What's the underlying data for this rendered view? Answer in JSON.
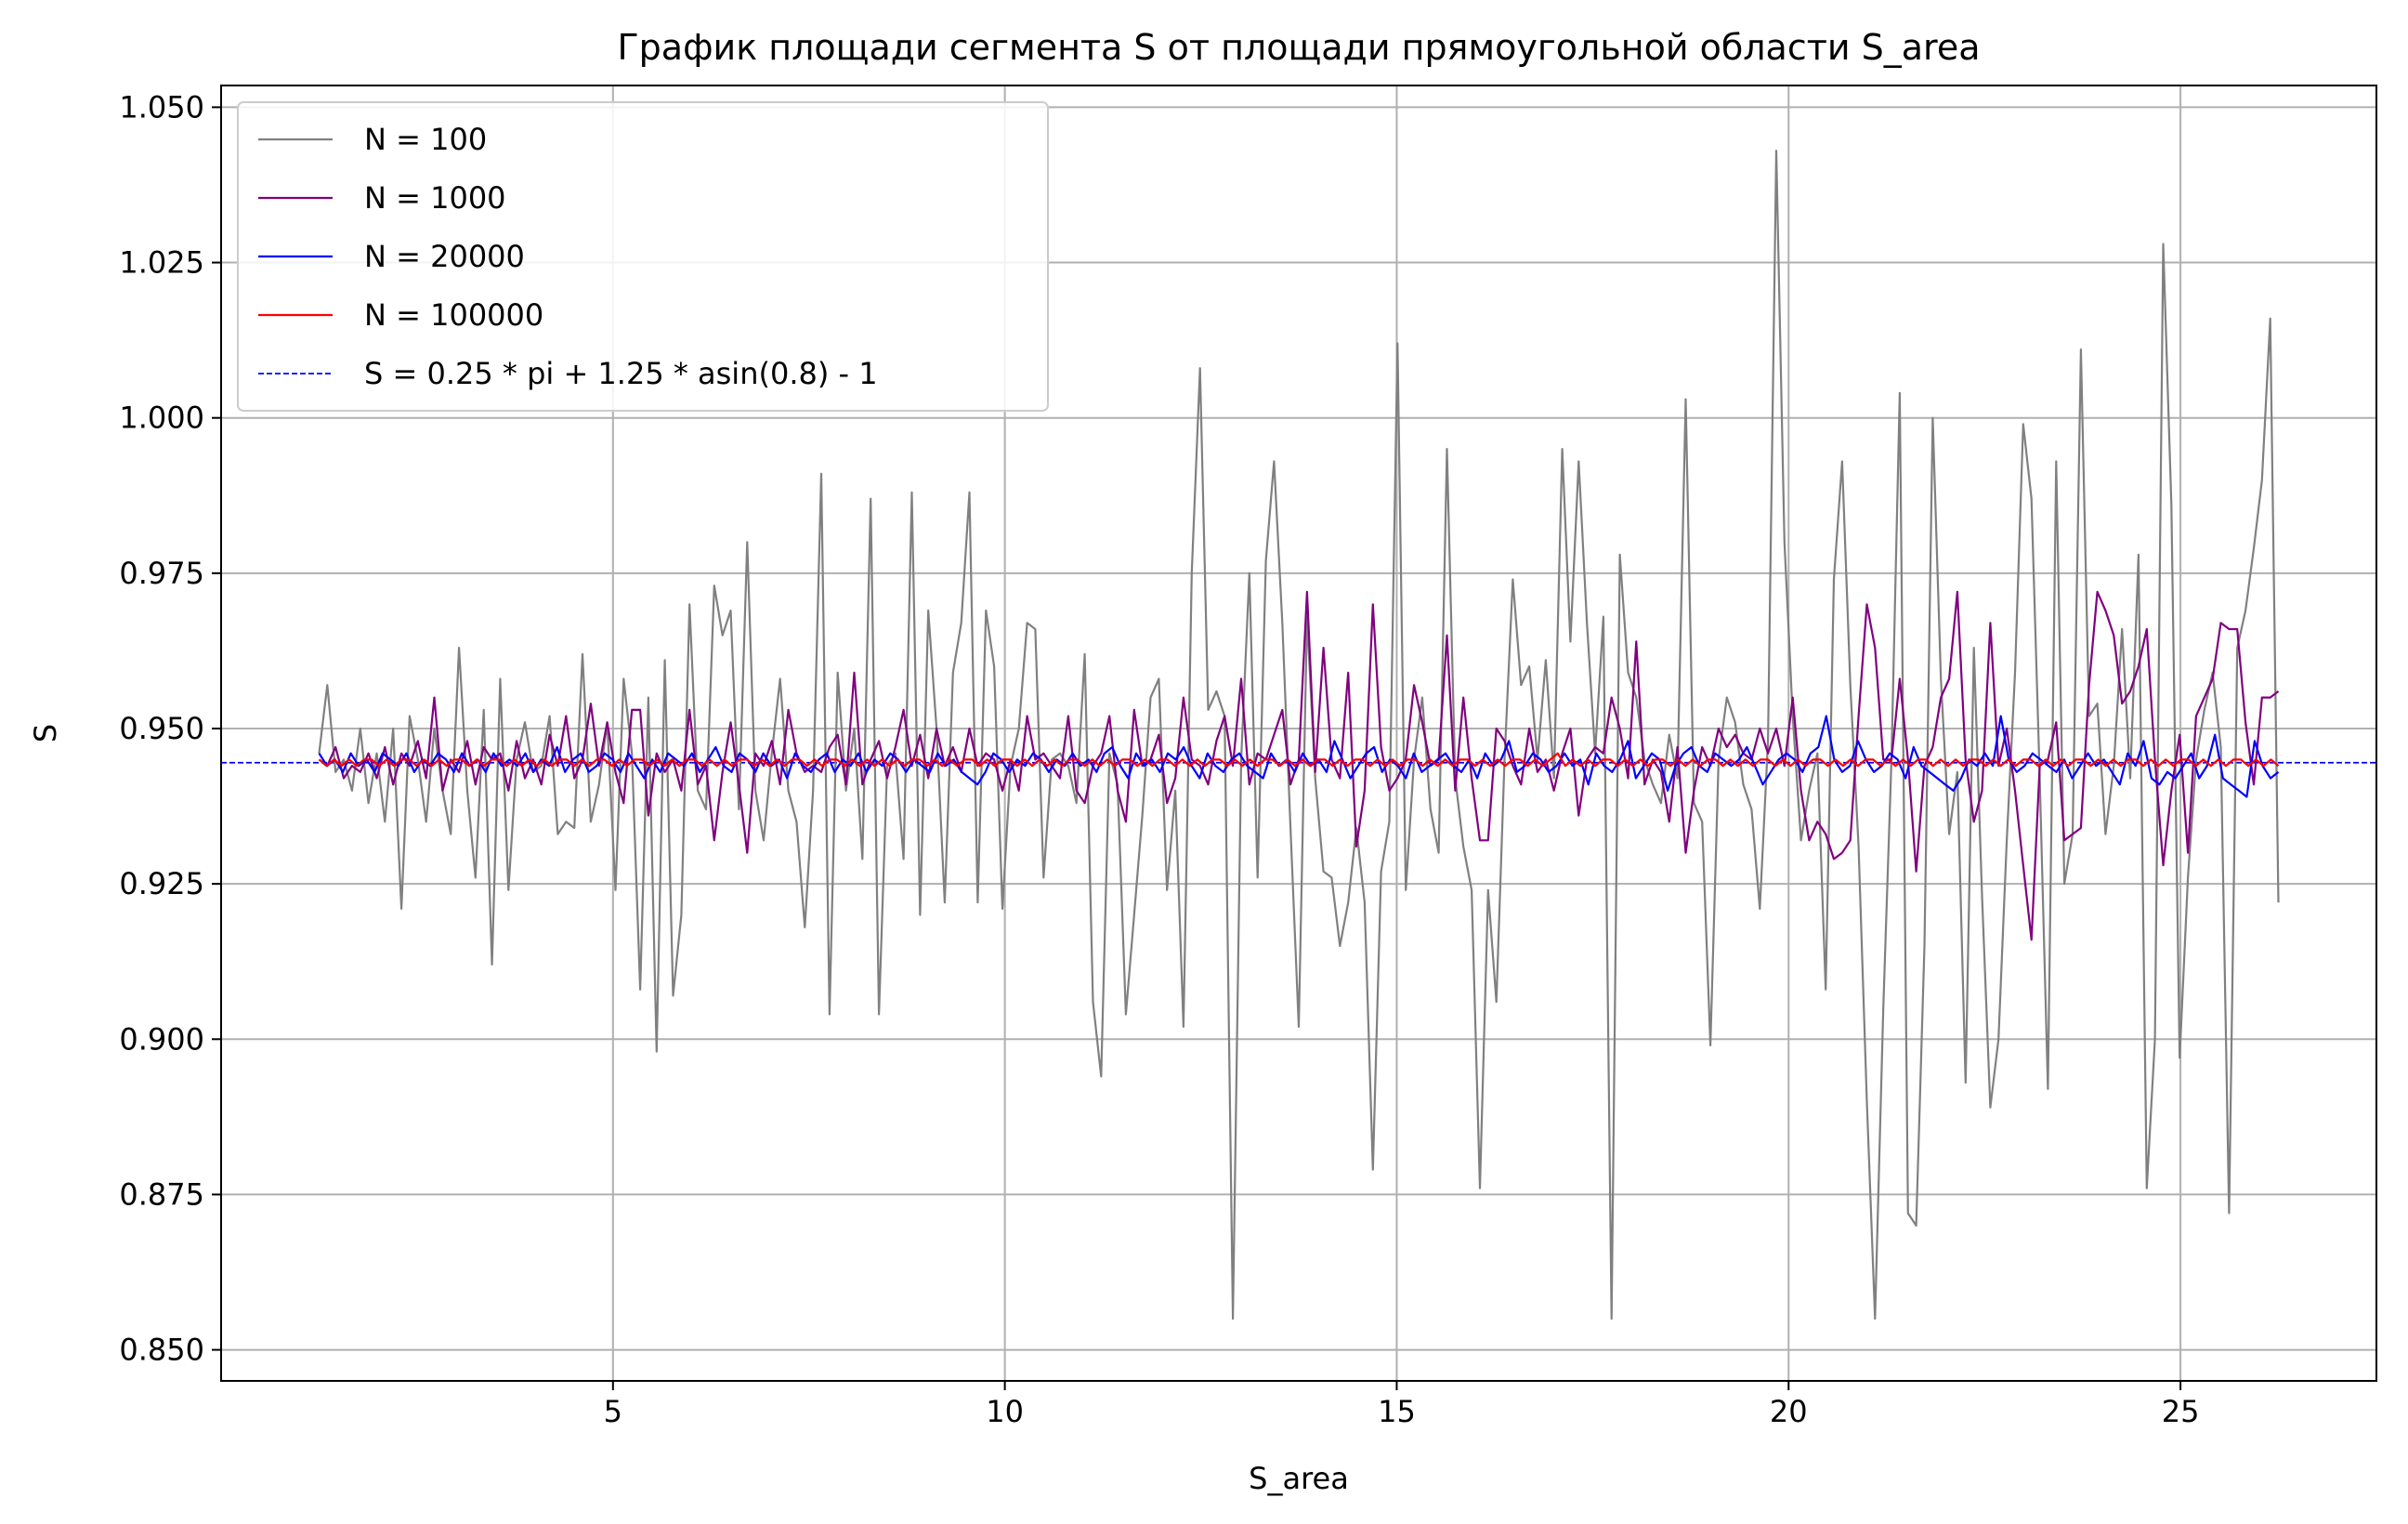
{
  "chart_data": {
    "type": "line",
    "title": "График площади сегмента S от площади прямоугольной области S_area",
    "xlabel": "S_area",
    "ylabel": "S",
    "xlim": [
      0,
      27.5
    ],
    "ylim": [
      0.845,
      1.0535
    ],
    "x_ticks": [
      5,
      10,
      15,
      20,
      25
    ],
    "x_tick_labels": [
      "5",
      "10",
      "15",
      "20",
      "25"
    ],
    "y_ticks": [
      0.85,
      0.875,
      0.9,
      0.925,
      0.95,
      0.975,
      1.0,
      1.025,
      1.05
    ],
    "y_tick_labels": [
      "0.850",
      "0.875",
      "0.900",
      "0.925",
      "0.950",
      "0.975",
      "1.000",
      "1.025",
      "1.050"
    ],
    "grid": true,
    "legend_position": "top-left",
    "x_range": [
      1.25,
      26.25
    ],
    "reference_line": {
      "name": "S = 0.25 * pi + 1.25 * asin(0.8) - 1",
      "y": 0.9445,
      "color": "#0000ff",
      "style": "dashed"
    },
    "series": [
      {
        "name": "N = 100",
        "color": "#808080",
        "values": [
          0.946,
          0.957,
          0.943,
          0.945,
          0.94,
          0.95,
          0.938,
          0.946,
          0.935,
          0.95,
          0.921,
          0.952,
          0.945,
          0.935,
          0.95,
          0.94,
          0.933,
          0.963,
          0.94,
          0.926,
          0.953,
          0.912,
          0.958,
          0.924,
          0.945,
          0.951,
          0.943,
          0.944,
          0.952,
          0.933,
          0.935,
          0.934,
          0.962,
          0.935,
          0.941,
          0.951,
          0.924,
          0.958,
          0.946,
          0.908,
          0.955,
          0.898,
          0.961,
          0.907,
          0.92,
          0.97,
          0.94,
          0.937,
          0.973,
          0.965,
          0.969,
          0.937,
          0.98,
          0.94,
          0.932,
          0.946,
          0.958,
          0.94,
          0.935,
          0.918,
          0.94,
          0.991,
          0.904,
          0.959,
          0.94,
          0.95,
          0.929,
          0.987,
          0.904,
          0.944,
          0.946,
          0.929,
          0.988,
          0.92,
          0.969,
          0.95,
          0.922,
          0.959,
          0.967,
          0.988,
          0.922,
          0.969,
          0.96,
          0.921,
          0.944,
          0.95,
          0.967,
          0.966,
          0.926,
          0.945,
          0.946,
          0.944,
          0.938,
          0.962,
          0.906,
          0.894,
          0.946,
          0.941,
          0.904,
          0.92,
          0.936,
          0.955,
          0.958,
          0.924,
          0.94,
          0.902,
          0.975,
          1.008,
          0.953,
          0.956,
          0.952,
          0.855,
          0.945,
          0.975,
          0.926,
          0.977,
          0.993,
          0.967,
          0.934,
          0.902,
          0.968,
          0.942,
          0.927,
          0.926,
          0.915,
          0.922,
          0.934,
          0.922,
          0.879,
          0.927,
          0.935,
          1.012,
          0.924,
          0.945,
          0.955,
          0.937,
          0.93,
          0.995,
          0.942,
          0.931,
          0.924,
          0.876,
          0.924,
          0.906,
          0.945,
          0.974,
          0.957,
          0.96,
          0.945,
          0.961,
          0.942,
          0.995,
          0.964,
          0.993,
          0.967,
          0.946,
          0.968,
          0.855,
          0.978,
          0.959,
          0.955,
          0.945,
          0.941,
          0.938,
          0.949,
          0.942,
          1.003,
          0.938,
          0.935,
          0.899,
          0.945,
          0.955,
          0.951,
          0.941,
          0.937,
          0.921,
          0.948,
          1.043,
          0.98,
          0.952,
          0.932,
          0.94,
          0.946,
          0.908,
          0.974,
          0.993,
          0.957,
          0.931,
          0.89,
          0.855,
          0.905,
          0.945,
          1.004,
          0.872,
          0.87,
          0.915,
          1.0,
          0.958,
          0.933,
          0.943,
          0.893,
          0.963,
          0.923,
          0.889,
          0.9,
          0.932,
          0.959,
          0.999,
          0.987,
          0.942,
          0.892,
          0.993,
          0.925,
          0.933,
          1.011,
          0.952,
          0.954,
          0.933,
          0.944,
          0.966,
          0.942,
          0.978,
          0.876,
          0.9,
          1.028,
          0.986,
          0.897,
          0.926,
          0.945,
          0.953,
          0.959,
          0.947,
          0.872,
          0.963,
          0.969,
          0.979,
          0.99,
          1.016,
          0.922
        ]
      },
      {
        "name": "N = 1000",
        "color": "#800080",
        "values": [
          0.945,
          0.944,
          0.947,
          0.942,
          0.944,
          0.943,
          0.946,
          0.942,
          0.947,
          0.941,
          0.946,
          0.944,
          0.948,
          0.942,
          0.955,
          0.94,
          0.945,
          0.943,
          0.948,
          0.941,
          0.947,
          0.945,
          0.946,
          0.94,
          0.948,
          0.942,
          0.945,
          0.941,
          0.949,
          0.944,
          0.952,
          0.942,
          0.945,
          0.954,
          0.944,
          0.951,
          0.943,
          0.938,
          0.953,
          0.953,
          0.936,
          0.946,
          0.943,
          0.945,
          0.94,
          0.953,
          0.941,
          0.944,
          0.932,
          0.943,
          0.951,
          0.941,
          0.93,
          0.946,
          0.944,
          0.948,
          0.941,
          0.953,
          0.946,
          0.943,
          0.944,
          0.943,
          0.947,
          0.949,
          0.941,
          0.959,
          0.941,
          0.945,
          0.948,
          0.942,
          0.947,
          0.953,
          0.944,
          0.949,
          0.942,
          0.95,
          0.944,
          0.947,
          0.943,
          0.95,
          0.944,
          0.946,
          0.945,
          0.94,
          0.945,
          0.94,
          0.952,
          0.945,
          0.946,
          0.944,
          0.942,
          0.952,
          0.94,
          0.938,
          0.944,
          0.946,
          0.952,
          0.94,
          0.935,
          0.953,
          0.944,
          0.945,
          0.949,
          0.938,
          0.942,
          0.955,
          0.945,
          0.944,
          0.941,
          0.948,
          0.952,
          0.944,
          0.958,
          0.941,
          0.946,
          0.945,
          0.949,
          0.953,
          0.941,
          0.945,
          0.972,
          0.943,
          0.963,
          0.945,
          0.942,
          0.959,
          0.931,
          0.94,
          0.97,
          0.947,
          0.94,
          0.942,
          0.945,
          0.957,
          0.951,
          0.944,
          0.945,
          0.965,
          0.94,
          0.955,
          0.942,
          0.932,
          0.932,
          0.95,
          0.948,
          0.944,
          0.941,
          0.95,
          0.943,
          0.945,
          0.94,
          0.946,
          0.95,
          0.936,
          0.945,
          0.947,
          0.946,
          0.955,
          0.95,
          0.942,
          0.964,
          0.941,
          0.945,
          0.943,
          0.935,
          0.947,
          0.93,
          0.94,
          0.947,
          0.944,
          0.95,
          0.947,
          0.949,
          0.946,
          0.945,
          0.95,
          0.946,
          0.95,
          0.944,
          0.955,
          0.94,
          0.932,
          0.935,
          0.933,
          0.929,
          0.93,
          0.932,
          0.952,
          0.97,
          0.963,
          0.945,
          0.945,
          0.958,
          0.945,
          0.927,
          0.944,
          0.947,
          0.955,
          0.958,
          0.972,
          0.945,
          0.935,
          0.94,
          0.967,
          0.944,
          0.95,
          0.94,
          0.928,
          0.916,
          0.944,
          0.945,
          0.951,
          0.932,
          0.933,
          0.934,
          0.957,
          0.972,
          0.969,
          0.965,
          0.954,
          0.956,
          0.96,
          0.966,
          0.945,
          0.928,
          0.94,
          0.949,
          0.93,
          0.952,
          0.955,
          0.958,
          0.967,
          0.966,
          0.966,
          0.951,
          0.941,
          0.955,
          0.955,
          0.956
        ]
      },
      {
        "name": "N = 20000",
        "color": "#0000ff",
        "values": [
          0.946,
          0.944,
          0.945,
          0.943,
          0.946,
          0.944,
          0.945,
          0.943,
          0.946,
          0.945,
          0.944,
          0.946,
          0.943,
          0.945,
          0.944,
          0.946,
          0.945,
          0.943,
          0.946,
          0.944,
          0.945,
          0.943,
          0.946,
          0.944,
          0.945,
          0.944,
          0.946,
          0.943,
          0.945,
          0.944,
          0.947,
          0.943,
          0.945,
          0.946,
          0.943,
          0.944,
          0.946,
          0.945,
          0.943,
          0.946,
          0.944,
          0.942,
          0.945,
          0.943,
          0.946,
          0.945,
          0.944,
          0.946,
          0.943,
          0.945,
          0.947,
          0.944,
          0.943,
          0.946,
          0.945,
          0.943,
          0.946,
          0.944,
          0.945,
          0.942,
          0.946,
          0.944,
          0.943,
          0.945,
          0.946,
          0.943,
          0.945,
          0.944,
          0.946,
          0.943,
          0.945,
          0.944,
          0.946,
          0.945,
          0.943,
          0.945,
          0.944,
          0.943,
          0.946,
          0.944,
          0.945,
          0.943,
          0.942,
          0.941,
          0.943,
          0.946,
          0.945,
          0.943,
          0.945,
          0.944,
          0.946,
          0.945,
          0.943,
          0.945,
          0.944,
          0.946,
          0.944,
          0.945,
          0.943,
          0.946,
          0.947,
          0.944,
          0.942,
          0.946,
          0.944,
          0.945,
          0.943,
          0.946,
          0.945,
          0.947,
          0.944,
          0.942,
          0.946,
          0.944,
          0.943,
          0.945,
          0.946,
          0.944,
          0.943,
          0.942,
          0.946,
          0.944,
          0.945,
          0.943,
          0.946,
          0.944,
          0.945,
          0.943,
          0.948,
          0.945,
          0.942,
          0.944,
          0.946,
          0.947,
          0.943,
          0.945,
          0.944,
          0.942,
          0.946,
          0.943,
          0.944,
          0.945,
          0.946,
          0.944,
          0.943,
          0.945,
          0.942,
          0.946,
          0.944,
          0.945,
          0.948,
          0.943,
          0.944,
          0.946,
          0.945,
          0.943,
          0.944,
          0.946,
          0.944,
          0.945,
          0.941,
          0.946,
          0.944,
          0.943,
          0.945,
          0.948,
          0.942,
          0.944,
          0.946,
          0.945,
          0.94,
          0.944,
          0.946,
          0.947,
          0.944,
          0.943,
          0.946,
          0.945,
          0.944,
          0.945,
          0.947,
          0.944,
          0.941,
          0.943,
          0.945,
          0.946,
          0.945,
          0.943,
          0.946,
          0.947,
          0.952,
          0.945,
          0.943,
          0.944,
          0.948,
          0.945,
          0.943,
          0.944,
          0.946,
          0.945,
          0.942,
          0.947,
          0.944,
          0.943,
          0.942,
          0.941,
          0.94,
          0.942,
          0.945,
          0.944,
          0.946,
          0.944,
          0.952,
          0.945,
          0.943,
          0.944,
          0.946,
          0.945,
          0.944,
          0.943,
          0.945,
          0.942,
          0.944,
          0.946,
          0.944,
          0.945,
          0.943,
          0.941,
          0.946,
          0.944,
          0.948,
          0.942,
          0.941,
          0.943,
          0.942,
          0.944,
          0.946,
          0.942,
          0.944,
          0.949,
          0.942,
          0.941,
          0.94,
          0.939,
          0.948,
          0.944,
          0.942,
          0.943
        ]
      },
      {
        "name": "N = 100000",
        "color": "#ff0000",
        "values": [
          0.945,
          0.944,
          0.945,
          0.944,
          0.945,
          0.944,
          0.945,
          0.945,
          0.944,
          0.945,
          0.944,
          0.945,
          0.945,
          0.944,
          0.945,
          0.944,
          0.945,
          0.944,
          0.945,
          0.945,
          0.944,
          0.945,
          0.944,
          0.945,
          0.945,
          0.944,
          0.945,
          0.944,
          0.945,
          0.944,
          0.945,
          0.944,
          0.945,
          0.945,
          0.944,
          0.945,
          0.944,
          0.945,
          0.945,
          0.944,
          0.945,
          0.944,
          0.945,
          0.945,
          0.944,
          0.945,
          0.944,
          0.945,
          0.944,
          0.945,
          0.945,
          0.944,
          0.945,
          0.944,
          0.945,
          0.944,
          0.945,
          0.945,
          0.944,
          0.945,
          0.944,
          0.945,
          0.944,
          0.945,
          0.945,
          0.944,
          0.945,
          0.944,
          0.945,
          0.945,
          0.944,
          0.945,
          0.944,
          0.945,
          0.944,
          0.945,
          0.944,
          0.945,
          0.944,
          0.945,
          0.945,
          0.944,
          0.945,
          0.944,
          0.945,
          0.944,
          0.945,
          0.945,
          0.944,
          0.945,
          0.944,
          0.945,
          0.945,
          0.944,
          0.945,
          0.944,
          0.945,
          0.944,
          0.945,
          0.944,
          0.945,
          0.945,
          0.944,
          0.945,
          0.944,
          0.945,
          0.944,
          0.945,
          0.945,
          0.944,
          0.945,
          0.944,
          0.945,
          0.945,
          0.944,
          0.945,
          0.944,
          0.945,
          0.944,
          0.945,
          0.945,
          0.944,
          0.945,
          0.944,
          0.945,
          0.944,
          0.945,
          0.945,
          0.944,
          0.945,
          0.944,
          0.945,
          0.944,
          0.945,
          0.945,
          0.944,
          0.945,
          0.944,
          0.945,
          0.945,
          0.944,
          0.945,
          0.944,
          0.945,
          0.944,
          0.945,
          0.945,
          0.944,
          0.945,
          0.944,
          0.945,
          0.944,
          0.945,
          0.945,
          0.944,
          0.945,
          0.944,
          0.945,
          0.944,
          0.945,
          0.945,
          0.944,
          0.945,
          0.944,
          0.945,
          0.946,
          0.944,
          0.945,
          0.944,
          0.945,
          0.944,
          0.945,
          0.945,
          0.944,
          0.945,
          0.944,
          0.945,
          0.944,
          0.945,
          0.945,
          0.944,
          0.945,
          0.944,
          0.945,
          0.944,
          0.945,
          0.945,
          0.944,
          0.945,
          0.944,
          0.945,
          0.944,
          0.945,
          0.945,
          0.944,
          0.945,
          0.944,
          0.945,
          0.944,
          0.945,
          0.945,
          0.944,
          0.945,
          0.944,
          0.945,
          0.944,
          0.945,
          0.945,
          0.944,
          0.945,
          0.944,
          0.945,
          0.944,
          0.945,
          0.945,
          0.944,
          0.945,
          0.944,
          0.945,
          0.944,
          0.945,
          0.945,
          0.944,
          0.945,
          0.944,
          0.945,
          0.944,
          0.945,
          0.945,
          0.944,
          0.945,
          0.944,
          0.945,
          0.944,
          0.945,
          0.945,
          0.944,
          0.945,
          0.944,
          0.945,
          0.944,
          0.945,
          0.945,
          0.944,
          0.945,
          0.944,
          0.945,
          0.944,
          0.945,
          0.945,
          0.944,
          0.945,
          0.944,
          0.945,
          0.944,
          0.945,
          0.945,
          0.944,
          0.945,
          0.944,
          0.945,
          0.944
        ]
      }
    ]
  }
}
